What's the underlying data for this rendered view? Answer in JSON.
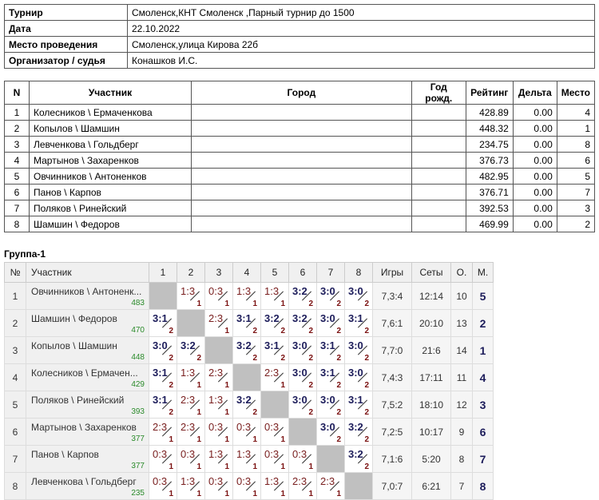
{
  "info": [
    [
      "Турнир",
      "Смоленск,КНТ Смоленск ,Парный турнир до 1500"
    ],
    [
      "Дата",
      "22.10.2022"
    ],
    [
      "Место проведения",
      "Смоленск,улица Кирова 22б"
    ],
    [
      "Организатор / судья",
      "Конашков И.С."
    ]
  ],
  "participants": {
    "headers": [
      "N",
      "Участник",
      "Город",
      "Год рожд.",
      "Рейтинг",
      "Дельта",
      "Место"
    ],
    "rows": [
      [
        "1",
        "Колесников \\ Ермаченкова",
        "",
        "",
        "428.89",
        "0.00",
        "4"
      ],
      [
        "2",
        "Копылов \\ Шамшин",
        "",
        "",
        "448.32",
        "0.00",
        "1"
      ],
      [
        "3",
        "Левченкова \\ Гольдберг",
        "",
        "",
        "234.75",
        "0.00",
        "8"
      ],
      [
        "4",
        "Мартынов \\ Захаренков",
        "",
        "",
        "376.73",
        "0.00",
        "6"
      ],
      [
        "5",
        "Овчинников \\ Антоненков",
        "",
        "",
        "482.95",
        "0.00",
        "5"
      ],
      [
        "6",
        "Панов \\ Карпов",
        "",
        "",
        "376.71",
        "0.00",
        "7"
      ],
      [
        "7",
        "Поляков \\ Ринейский",
        "",
        "",
        "392.53",
        "0.00",
        "3"
      ],
      [
        "8",
        "Шамшин \\ Федоров",
        "",
        "",
        "469.99",
        "0.00",
        "2"
      ]
    ]
  },
  "group": {
    "title": "Группа-1",
    "headers": [
      "№",
      "Участник",
      "1",
      "2",
      "3",
      "4",
      "5",
      "6",
      "7",
      "8",
      "Игры",
      "Сеты",
      "О.",
      "М."
    ],
    "rows": [
      {
        "n": "1",
        "name": "Овчинников \\ Антоненк...",
        "rating": "483",
        "cells": [
          null,
          [
            "1:3",
            "1"
          ],
          [
            "0:3",
            "1"
          ],
          [
            "1:3",
            "1"
          ],
          [
            "1:3",
            "1"
          ],
          [
            "3:2",
            "2"
          ],
          [
            "3:0",
            "2"
          ],
          [
            "3:0",
            "2"
          ]
        ],
        "games": "7,3:4",
        "sets": "12:14",
        "points": "10",
        "place": "5"
      },
      {
        "n": "2",
        "name": "Шамшин \\ Федоров",
        "rating": "470",
        "cells": [
          [
            "3:1",
            "2"
          ],
          null,
          [
            "2:3",
            "1"
          ],
          [
            "3:1",
            "2"
          ],
          [
            "3:2",
            "2"
          ],
          [
            "3:2",
            "2"
          ],
          [
            "3:0",
            "2"
          ],
          [
            "3:1",
            "2"
          ]
        ],
        "games": "7,6:1",
        "sets": "20:10",
        "points": "13",
        "place": "2"
      },
      {
        "n": "3",
        "name": "Копылов \\ Шамшин",
        "rating": "448",
        "cells": [
          [
            "3:0",
            "2"
          ],
          [
            "3:2",
            "2"
          ],
          null,
          [
            "3:2",
            "2"
          ],
          [
            "3:1",
            "2"
          ],
          [
            "3:0",
            "2"
          ],
          [
            "3:1",
            "2"
          ],
          [
            "3:0",
            "2"
          ]
        ],
        "games": "7,7:0",
        "sets": "21:6",
        "points": "14",
        "place": "1"
      },
      {
        "n": "4",
        "name": "Колесников \\ Ермачен...",
        "rating": "429",
        "cells": [
          [
            "3:1",
            "2"
          ],
          [
            "1:3",
            "1"
          ],
          [
            "2:3",
            "1"
          ],
          null,
          [
            "2:3",
            "1"
          ],
          [
            "3:0",
            "2"
          ],
          [
            "3:1",
            "2"
          ],
          [
            "3:0",
            "2"
          ]
        ],
        "games": "7,4:3",
        "sets": "17:11",
        "points": "11",
        "place": "4"
      },
      {
        "n": "5",
        "name": "Поляков \\ Ринейский",
        "rating": "393",
        "cells": [
          [
            "3:1",
            "2"
          ],
          [
            "2:3",
            "1"
          ],
          [
            "1:3",
            "1"
          ],
          [
            "3:2",
            "2"
          ],
          null,
          [
            "3:0",
            "2"
          ],
          [
            "3:0",
            "2"
          ],
          [
            "3:1",
            "2"
          ]
        ],
        "games": "7,5:2",
        "sets": "18:10",
        "points": "12",
        "place": "3"
      },
      {
        "n": "6",
        "name": "Мартынов \\ Захаренков",
        "rating": "377",
        "cells": [
          [
            "2:3",
            "1"
          ],
          [
            "2:3",
            "1"
          ],
          [
            "0:3",
            "1"
          ],
          [
            "0:3",
            "1"
          ],
          [
            "0:3",
            "1"
          ],
          null,
          [
            "3:0",
            "2"
          ],
          [
            "3:2",
            "2"
          ]
        ],
        "games": "7,2:5",
        "sets": "10:17",
        "points": "9",
        "place": "6"
      },
      {
        "n": "7",
        "name": "Панов \\ Карпов",
        "rating": "377",
        "cells": [
          [
            "0:3",
            "1"
          ],
          [
            "0:3",
            "1"
          ],
          [
            "1:3",
            "1"
          ],
          [
            "1:3",
            "1"
          ],
          [
            "0:3",
            "1"
          ],
          [
            "0:3",
            "1"
          ],
          null,
          [
            "3:2",
            "2"
          ]
        ],
        "games": "7,1:6",
        "sets": "5:20",
        "points": "8",
        "place": "7"
      },
      {
        "n": "8",
        "name": "Левченкова \\ Гольдберг",
        "rating": "235",
        "cells": [
          [
            "0:3",
            "1"
          ],
          [
            "1:3",
            "1"
          ],
          [
            "0:3",
            "1"
          ],
          [
            "0:3",
            "1"
          ],
          [
            "1:3",
            "1"
          ],
          [
            "2:3",
            "1"
          ],
          [
            "2:3",
            "1"
          ],
          null
        ],
        "games": "7,0:7",
        "sets": "6:21",
        "points": "7",
        "place": "8"
      }
    ]
  },
  "colors": {
    "win": "#1c1c5a",
    "loss": "#7a2020",
    "rating": "#2a8a2a",
    "diagonal": "#c0c0c0"
  }
}
